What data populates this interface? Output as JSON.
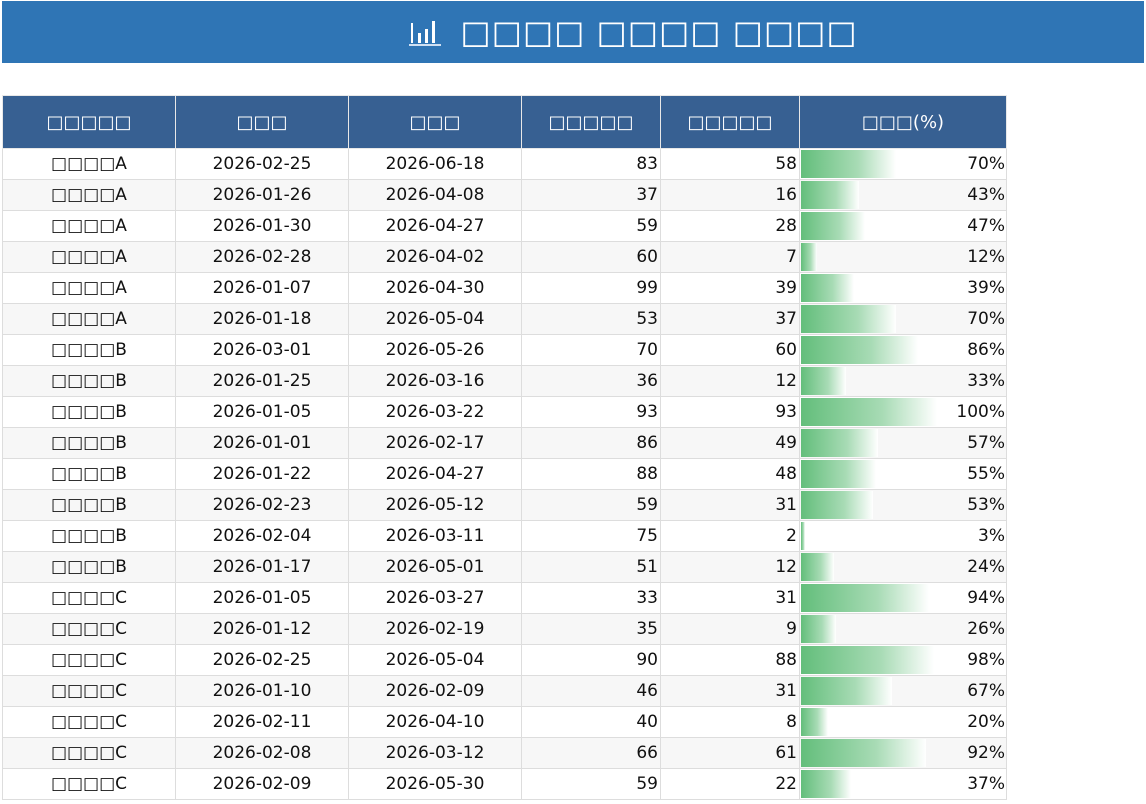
{
  "title": {
    "icon": "bar-chart-icon",
    "text": "□□□□ □□□□ □□□□"
  },
  "colors": {
    "title_bg": "#2f75b5",
    "header_bg": "#376092",
    "bar": "#63be7b"
  },
  "table": {
    "headers": [
      "□□□□□",
      "□□□",
      "□□□",
      "□□□□□",
      "□□□□□",
      "□□□(%)"
    ],
    "rows": [
      [
        "□□□□A",
        "2026-02-25",
        "2026-06-18",
        "83",
        "58",
        "70%",
        70
      ],
      [
        "□□□□A",
        "2026-01-26",
        "2026-04-08",
        "37",
        "16",
        "43%",
        43
      ],
      [
        "□□□□A",
        "2026-01-30",
        "2026-04-27",
        "59",
        "28",
        "47%",
        47
      ],
      [
        "□□□□A",
        "2026-02-28",
        "2026-04-02",
        "60",
        "7",
        "12%",
        12
      ],
      [
        "□□□□A",
        "2026-01-07",
        "2026-04-30",
        "99",
        "39",
        "39%",
        39
      ],
      [
        "□□□□A",
        "2026-01-18",
        "2026-05-04",
        "53",
        "37",
        "70%",
        70
      ],
      [
        "□□□□B",
        "2026-03-01",
        "2026-05-26",
        "70",
        "60",
        "86%",
        86
      ],
      [
        "□□□□B",
        "2026-01-25",
        "2026-03-16",
        "36",
        "12",
        "33%",
        33
      ],
      [
        "□□□□B",
        "2026-01-05",
        "2026-03-22",
        "93",
        "93",
        "100%",
        100
      ],
      [
        "□□□□B",
        "2026-01-01",
        "2026-02-17",
        "86",
        "49",
        "57%",
        57
      ],
      [
        "□□□□B",
        "2026-01-22",
        "2026-04-27",
        "88",
        "48",
        "55%",
        55
      ],
      [
        "□□□□B",
        "2026-02-23",
        "2026-05-12",
        "59",
        "31",
        "53%",
        53
      ],
      [
        "□□□□B",
        "2026-02-04",
        "2026-03-11",
        "75",
        "2",
        "3%",
        3
      ],
      [
        "□□□□B",
        "2026-01-17",
        "2026-05-01",
        "51",
        "12",
        "24%",
        24
      ],
      [
        "□□□□C",
        "2026-01-05",
        "2026-03-27",
        "33",
        "31",
        "94%",
        94
      ],
      [
        "□□□□C",
        "2026-01-12",
        "2026-02-19",
        "35",
        "9",
        "26%",
        26
      ],
      [
        "□□□□C",
        "2026-02-25",
        "2026-05-04",
        "90",
        "88",
        "98%",
        98
      ],
      [
        "□□□□C",
        "2026-01-10",
        "2026-02-09",
        "46",
        "31",
        "67%",
        67
      ],
      [
        "□□□□C",
        "2026-02-11",
        "2026-04-10",
        "40",
        "8",
        "20%",
        20
      ],
      [
        "□□□□C",
        "2026-02-08",
        "2026-03-12",
        "66",
        "61",
        "92%",
        92
      ],
      [
        "□□□□C",
        "2026-02-09",
        "2026-05-30",
        "59",
        "22",
        "37%",
        37
      ]
    ]
  }
}
